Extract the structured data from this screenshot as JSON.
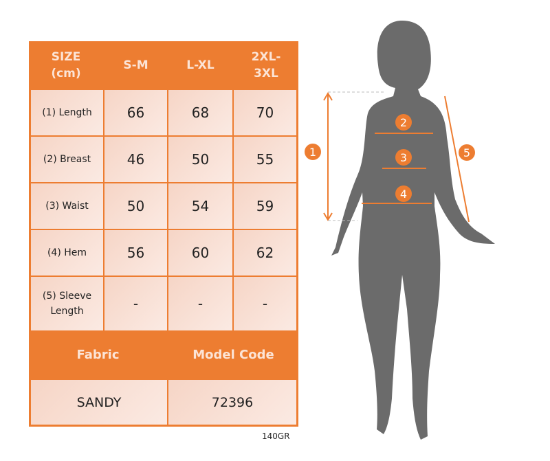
{
  "table": {
    "header": [
      "SIZE\n(cm)",
      "S-M",
      "L-XL",
      "2XL-\n3XL"
    ],
    "rows": [
      {
        "label": "(1) Length",
        "values": [
          "66",
          "68",
          "70"
        ]
      },
      {
        "label": "(2) Breast",
        "values": [
          "46",
          "50",
          "55"
        ]
      },
      {
        "label": "(3) Waist",
        "values": [
          "50",
          "54",
          "59"
        ]
      },
      {
        "label": "(4) Hem",
        "values": [
          "56",
          "60",
          "62"
        ]
      },
      {
        "label": "(5) Sleeve\nLength",
        "values": [
          "-",
          "-",
          "-"
        ]
      }
    ],
    "footer_headers": [
      "Fabric",
      "Model Code"
    ],
    "footer_values": [
      "SANDY",
      "72396"
    ]
  },
  "code": "140GR",
  "markers": [
    "1",
    "2",
    "3",
    "4",
    "5"
  ],
  "colors": {
    "accent": "#ED7D31",
    "cell": "#F8DFD4",
    "silhouette": "#6B6B6B"
  }
}
